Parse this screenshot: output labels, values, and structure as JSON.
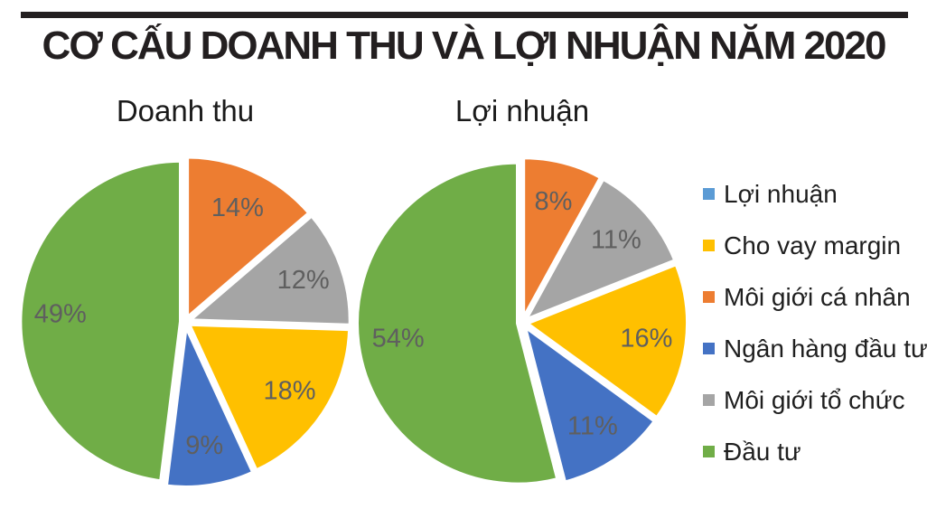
{
  "header": {
    "title": "CƠ CẤU DOANH THU VÀ LỢI NHUẬN NĂM 2020"
  },
  "colors": {
    "loi_nhuan": "#5B9BD5",
    "cho_vay_margin": "#FFC000",
    "moi_gioi_ca_nhan": "#ED7D31",
    "ngan_hang_dau_tu": "#4472C4",
    "moi_gioi_to_chuc": "#A5A5A5",
    "dau_tu": "#70AD47",
    "title_bar": "#231f20",
    "percent_label_text": "#5f5f5f"
  },
  "legend": {
    "position": "right",
    "items": [
      {
        "label": "Lợi nhuận",
        "color": "#5B9BD5"
      },
      {
        "label": "Cho vay margin",
        "color": "#FFC000"
      },
      {
        "label": "Môi giới cá nhân",
        "color": "#ED7D31"
      },
      {
        "label": "Ngân hàng đầu tư",
        "color": "#4472C4"
      },
      {
        "label": "Môi giới tổ chức",
        "color": "#A5A5A5"
      },
      {
        "label": "Đầu tư",
        "color": "#70AD47"
      }
    ]
  },
  "chart_data": [
    {
      "type": "pie",
      "title": "Doanh thu",
      "categories": [
        "Môi giới cá nhân",
        "Môi giới tổ chức",
        "Cho vay margin",
        "Ngân hàng đầu tư",
        "Đầu tư"
      ],
      "values": [
        14,
        12,
        18,
        9,
        49
      ],
      "labels": [
        "14%",
        "12%",
        "18%",
        "9%",
        "49%"
      ],
      "colors": [
        "#ED7D31",
        "#A5A5A5",
        "#FFC000",
        "#4472C4",
        "#70AD47"
      ],
      "start_angle": 0,
      "direction": "clockwise",
      "exploded": true,
      "label_radius": 0.75,
      "grid": false
    },
    {
      "type": "pie",
      "title": "Lợi nhuận",
      "categories": [
        "Môi giới cá nhân",
        "Môi giới tổ chức",
        "Cho vay margin",
        "Ngân hàng đầu tư",
        "Đầu tư"
      ],
      "values": [
        8,
        11,
        16,
        11,
        54
      ],
      "labels": [
        "8%",
        "11%",
        "16%",
        "11%",
        "54%"
      ],
      "colors": [
        "#ED7D31",
        "#A5A5A5",
        "#FFC000",
        "#4472C4",
        "#70AD47"
      ],
      "start_angle": 0,
      "direction": "clockwise",
      "exploded": true,
      "label_radius": 0.75,
      "grid": false
    }
  ]
}
